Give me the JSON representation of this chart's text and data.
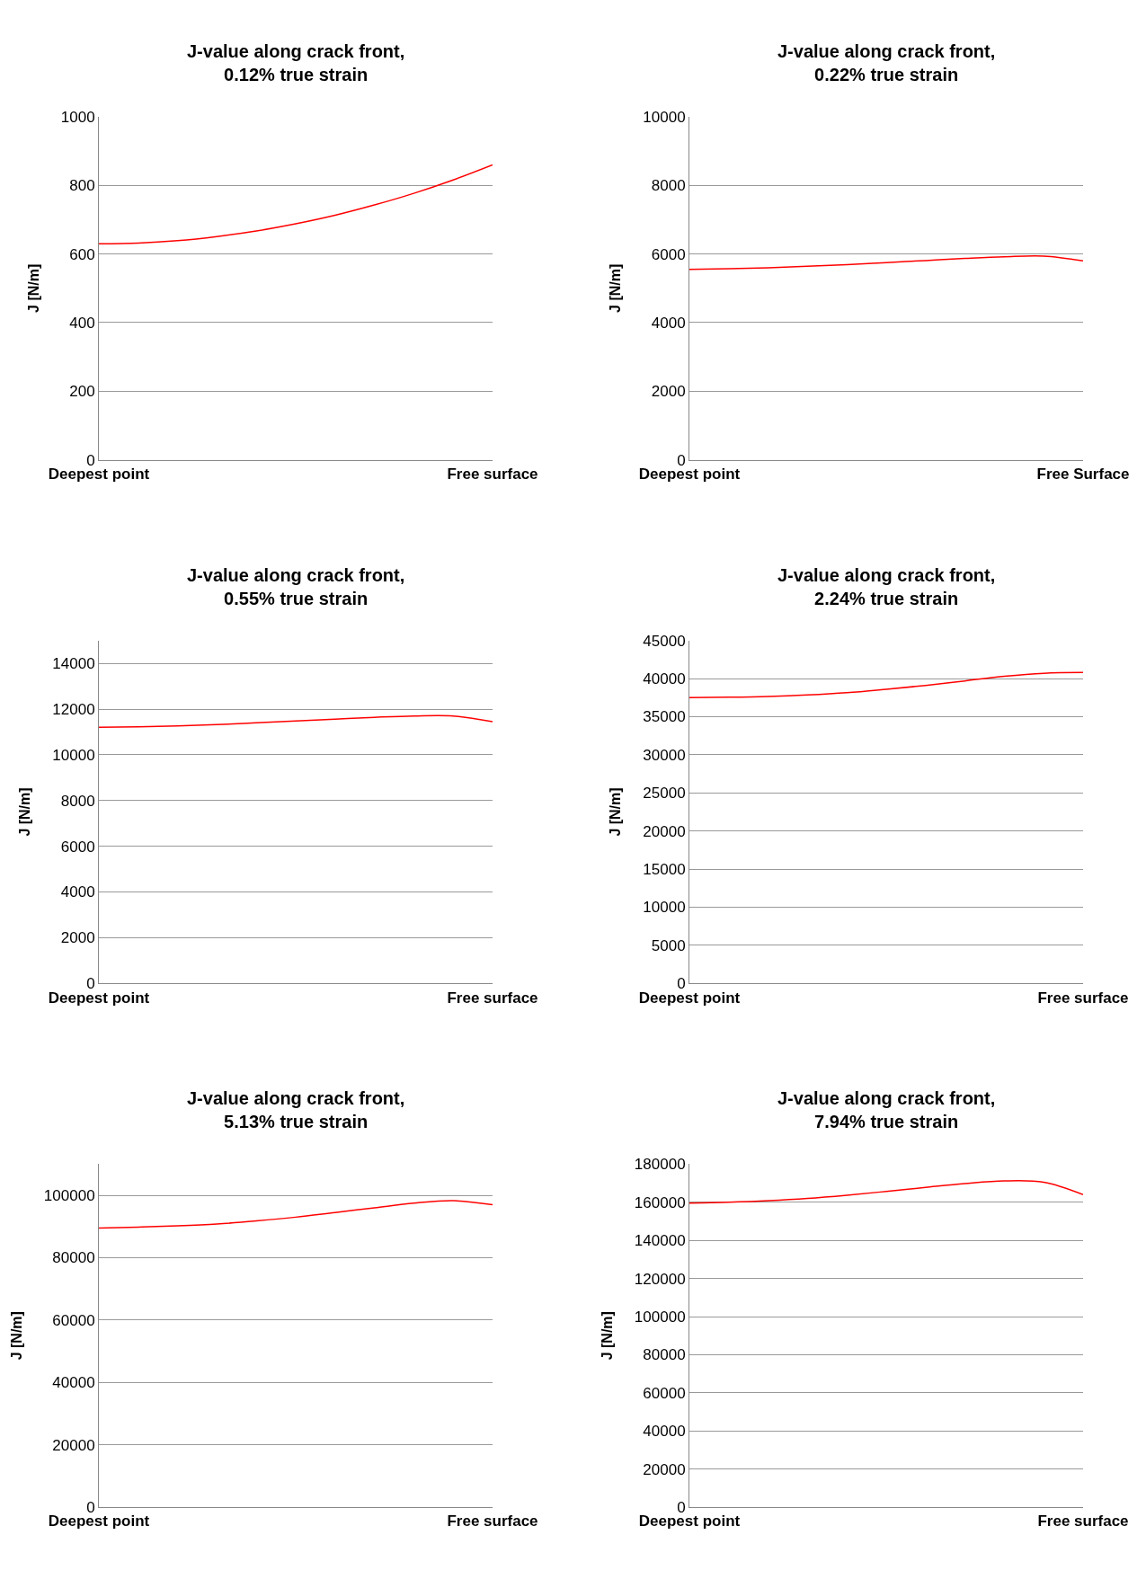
{
  "chart_data": [
    {
      "type": "line",
      "title": "J-value along crack front,\n0.12% true strain",
      "ylabel": "J [N/m]",
      "categories": [
        "Deepest point",
        null,
        null,
        null,
        null,
        null,
        null,
        null,
        null,
        null,
        "Free surface"
      ],
      "series": [
        {
          "color": "#ff0000",
          "values": [
            630,
            632,
            639,
            651,
            667,
            688,
            713,
            743,
            777,
            816,
            860
          ]
        }
      ],
      "ylim": [
        0,
        1000
      ],
      "yticks": [
        0,
        200,
        400,
        600,
        800,
        1000
      ],
      "grid": "y"
    },
    {
      "type": "line",
      "title": "J-value along crack front,\n0.22% true strain",
      "ylabel": "J [N/m]",
      "categories": [
        "Deepest point",
        null,
        null,
        null,
        null,
        null,
        null,
        null,
        null,
        null,
        "Free Surface"
      ],
      "series": [
        {
          "color": "#ff0000",
          "values": [
            5550,
            5570,
            5600,
            5640,
            5690,
            5750,
            5810,
            5870,
            5920,
            5940,
            5800
          ]
        }
      ],
      "ylim": [
        0,
        10000
      ],
      "yticks": [
        0,
        2000,
        4000,
        6000,
        8000,
        10000
      ],
      "grid": "y"
    },
    {
      "type": "line",
      "title": "J-value along crack front,\n0.55% true strain",
      "ylabel": "J [N/m]",
      "categories": [
        "Deepest point",
        null,
        null,
        null,
        null,
        null,
        null,
        null,
        null,
        null,
        "Free surface"
      ],
      "series": [
        {
          "color": "#ff0000",
          "values": [
            11200,
            11220,
            11260,
            11320,
            11400,
            11480,
            11560,
            11640,
            11700,
            11700,
            11450
          ]
        }
      ],
      "ylim": [
        0,
        15000
      ],
      "yticks": [
        0,
        2000,
        4000,
        6000,
        8000,
        10000,
        12000,
        14000
      ],
      "grid": "y"
    },
    {
      "type": "line",
      "title": "J-value along crack front,\n2.24% true strain",
      "ylabel": "J [N/m]",
      "categories": [
        "Deepest point",
        null,
        null,
        null,
        null,
        null,
        null,
        null,
        null,
        null,
        "Free surface"
      ],
      "series": [
        {
          "color": "#ff0000",
          "values": [
            37500,
            37550,
            37650,
            37850,
            38150,
            38600,
            39100,
            39700,
            40300,
            40700,
            40800
          ]
        }
      ],
      "ylim": [
        0,
        45000
      ],
      "yticks": [
        0,
        5000,
        10000,
        15000,
        20000,
        25000,
        30000,
        35000,
        40000,
        45000
      ],
      "grid": "y"
    },
    {
      "type": "line",
      "title": "J-value along crack front,\n5.13% true strain",
      "ylabel": "J [N/m]",
      "categories": [
        "Deepest point",
        null,
        null,
        null,
        null,
        null,
        null,
        null,
        null,
        null,
        "Free surface"
      ],
      "series": [
        {
          "color": "#ff0000",
          "values": [
            89500,
            89800,
            90200,
            90800,
            91800,
            93000,
            94500,
            96000,
            97500,
            98300,
            97000
          ]
        }
      ],
      "ylim": [
        0,
        110000
      ],
      "yticks": [
        0,
        20000,
        40000,
        60000,
        80000,
        100000
      ],
      "grid": "y"
    },
    {
      "type": "line",
      "title": "J-value along crack front,\n7.94% true strain",
      "ylabel": "J [N/m]",
      "categories": [
        "Deepest point",
        null,
        null,
        null,
        null,
        null,
        null,
        null,
        null,
        null,
        "Free surface"
      ],
      "series": [
        {
          "color": "#ff0000",
          "values": [
            159500,
            160000,
            160800,
            162000,
            163700,
            165700,
            167800,
            169800,
            171200,
            170500,
            164000
          ]
        }
      ],
      "ylim": [
        0,
        180000
      ],
      "yticks": [
        0,
        20000,
        40000,
        60000,
        80000,
        100000,
        120000,
        140000,
        160000,
        180000
      ],
      "grid": "y"
    }
  ]
}
